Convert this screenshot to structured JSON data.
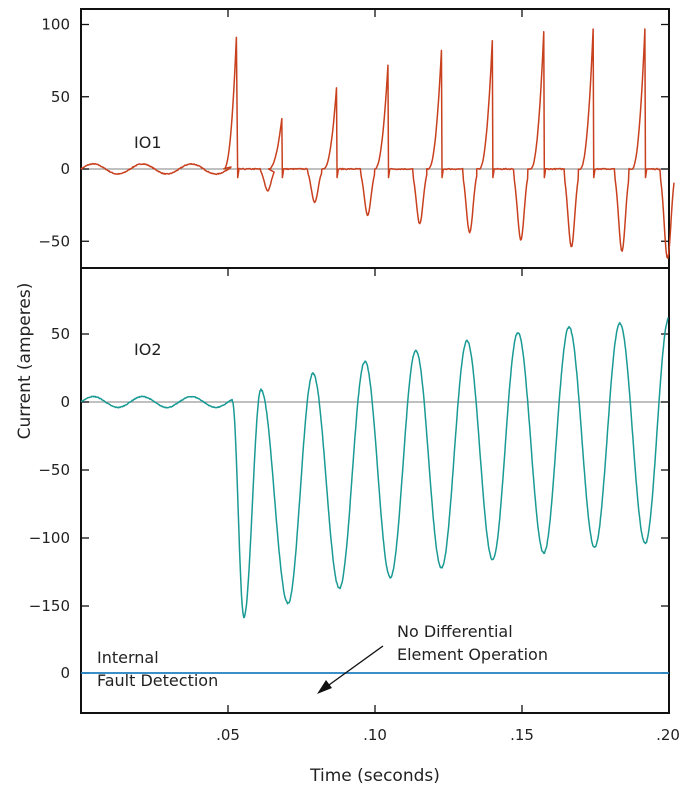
{
  "chart_data": {
    "type": "line",
    "xlabel": "Time (seconds)",
    "ylabel": "Current (amperes)",
    "xlim": [
      0,
      0.2
    ],
    "x_ticks": [
      {
        "value": 0.05,
        "label": ".05"
      },
      {
        "value": 0.1,
        "label": ".10"
      },
      {
        "value": 0.15,
        "label": ".15"
      },
      {
        "value": 0.2,
        "label": ".20"
      }
    ],
    "grid": false,
    "panels": [
      {
        "id": "io1",
        "label": "IO1",
        "color": "#c8401e",
        "ylim": [
          -68,
          105
        ],
        "y_ticks": [
          {
            "value": 100,
            "label": "100"
          },
          {
            "value": 50,
            "label": "50"
          },
          {
            "value": 0,
            "label": "0"
          },
          {
            "value": -50,
            "label": "−50"
          }
        ],
        "prefault": {
          "end": 0.051,
          "amplitude": 3.5
        },
        "positive_peaks": [
          {
            "t": 0.0531,
            "v": 103
          },
          {
            "t": 0.0683,
            "v": 35
          },
          {
            "t": 0.0869,
            "v": 56
          },
          {
            "t": 0.1044,
            "v": 72
          },
          {
            "t": 0.1226,
            "v": 82
          },
          {
            "t": 0.1399,
            "v": 89
          },
          {
            "t": 0.1574,
            "v": 95
          },
          {
            "t": 0.1742,
            "v": 97
          },
          {
            "t": 0.1918,
            "v": 97
          }
        ],
        "negative_peaks": [
          {
            "t": 0.0635,
            "v": -15
          },
          {
            "t": 0.0795,
            "v": -23
          },
          {
            "t": 0.0975,
            "v": -32
          },
          {
            "t": 0.1152,
            "v": -38
          },
          {
            "t": 0.1322,
            "v": -44
          },
          {
            "t": 0.1496,
            "v": -49
          },
          {
            "t": 0.1668,
            "v": -54
          },
          {
            "t": 0.184,
            "v": -57
          },
          {
            "t": 0.1995,
            "v": -62
          }
        ]
      },
      {
        "id": "io2",
        "label": "IO2",
        "color": "#1a9a94",
        "ylim": [
          -178,
          92
        ],
        "y_ticks": [
          {
            "value": 50,
            "label": "50"
          },
          {
            "value": 0,
            "label": "0"
          },
          {
            "value": -50,
            "label": "−50"
          },
          {
            "value": -100,
            "label": "−100"
          },
          {
            "value": -150,
            "label": "−150"
          }
        ],
        "prefault": {
          "end": 0.0515,
          "amplitude": 4
        },
        "positive_peaks": [
          {
            "t": 0.0612,
            "v": 9
          },
          {
            "t": 0.0789,
            "v": 21
          },
          {
            "t": 0.0966,
            "v": 30
          },
          {
            "t": 0.1139,
            "v": 38
          },
          {
            "t": 0.1313,
            "v": 45
          },
          {
            "t": 0.1486,
            "v": 51
          },
          {
            "t": 0.166,
            "v": 55
          },
          {
            "t": 0.1833,
            "v": 58
          },
          {
            "t": 0.2,
            "v": 62
          }
        ],
        "negative_peaks": [
          {
            "t": 0.0554,
            "v": -158
          },
          {
            "t": 0.0704,
            "v": -148
          },
          {
            "t": 0.0879,
            "v": -137
          },
          {
            "t": 0.1052,
            "v": -129
          },
          {
            "t": 0.1226,
            "v": -122
          },
          {
            "t": 0.14,
            "v": -116
          },
          {
            "t": 0.1574,
            "v": -111
          },
          {
            "t": 0.1747,
            "v": -107
          },
          {
            "t": 0.1919,
            "v": -104
          }
        ]
      },
      {
        "id": "digital",
        "color": "#1e7fc0",
        "y_ticks": [
          {
            "value": 0,
            "label": "0"
          }
        ],
        "series_values": [
          0,
          0
        ]
      }
    ],
    "annotations": {
      "internal_fault": [
        "Internal",
        "Fault Detection"
      ],
      "no_differential": [
        "No Differential",
        "Element Operation"
      ]
    }
  }
}
